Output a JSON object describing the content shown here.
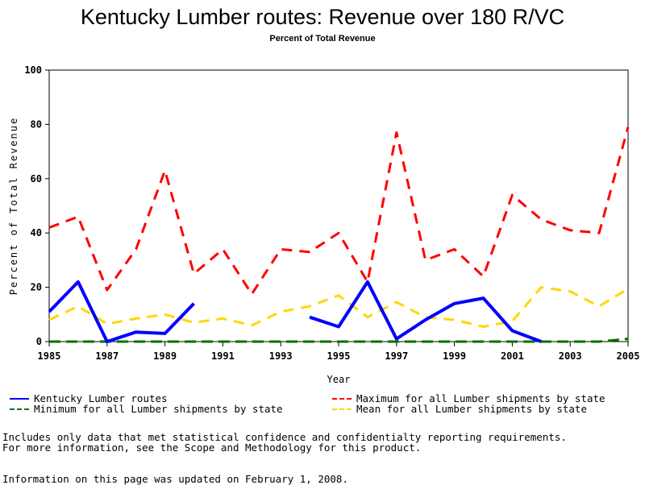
{
  "chart_data": {
    "type": "line",
    "title": "Kentucky Lumber routes: Revenue over 180 R/VC",
    "subtitle": "Percent of Total Revenue",
    "xlabel": "Year",
    "ylabel": "Percent of Total Revenue",
    "xlim": [
      1985,
      2005
    ],
    "ylim": [
      0,
      100
    ],
    "x_ticks": [
      "1985",
      "1987",
      "1989",
      "1991",
      "1993",
      "1995",
      "1997",
      "1999",
      "2001",
      "2003",
      "2005"
    ],
    "y_ticks": [
      "0",
      "20",
      "40",
      "60",
      "80",
      "100"
    ],
    "grid": false,
    "legend_placement": "bottom",
    "x": [
      1985,
      1986,
      1987,
      1988,
      1989,
      1990,
      1991,
      1992,
      1993,
      1994,
      1995,
      1996,
      1997,
      1998,
      1999,
      2000,
      2001,
      2002,
      2003,
      2004,
      2005
    ],
    "series": [
      {
        "name": "Kentucky Lumber routes",
        "color": "#0000ff",
        "style": "solid",
        "values": [
          11,
          22,
          0,
          3.5,
          3,
          14,
          null,
          null,
          null,
          9,
          5.5,
          22,
          1,
          8,
          14,
          16,
          4,
          0,
          null,
          null,
          null
        ]
      },
      {
        "name": "Maximum for all Lumber shipments by state",
        "color": "#ff0000",
        "style": "dashed",
        "values": [
          42,
          46,
          19,
          34,
          63,
          25,
          34,
          17.5,
          34,
          33,
          40,
          22,
          77,
          30,
          34,
          24,
          54,
          45,
          41,
          40,
          79
        ]
      },
      {
        "name": "Minimum for all Lumber shipments by state",
        "color": "#007000",
        "style": "dashed",
        "values": [
          0,
          0,
          0,
          0,
          0,
          0,
          0,
          0,
          0,
          0,
          0,
          0,
          0,
          0,
          0,
          0,
          0,
          0,
          0,
          0,
          1
        ]
      },
      {
        "name": "Mean for all Lumber shipments by state",
        "color": "#ffd700",
        "style": "dashed",
        "values": [
          8,
          13,
          6.5,
          8.5,
          10,
          7,
          8.5,
          6,
          11,
          13,
          17,
          9,
          14.5,
          9,
          8,
          5.5,
          7.5,
          20,
          18.5,
          13,
          19.5
        ]
      }
    ]
  },
  "notes": {
    "line1": "Includes only data that met statistical confidence and confidentialty reporting requirements.",
    "line2": "For more information, see the Scope and Methodology for this product.",
    "updated": "Information on this page was updated on February 1, 2008."
  }
}
